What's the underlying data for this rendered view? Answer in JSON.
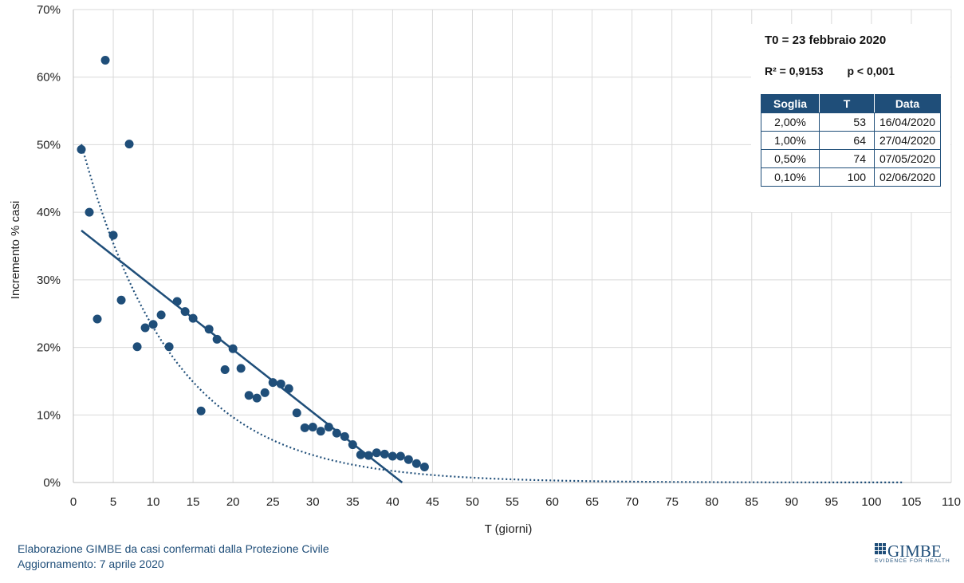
{
  "chart_data": {
    "type": "scatter",
    "xlabel": "T (giorni)",
    "ylabel": "Incremento % casi",
    "xlim": [
      0,
      110
    ],
    "ylim": [
      0,
      70
    ],
    "xticks": [
      "0",
      "5",
      "10",
      "15",
      "20",
      "25",
      "30",
      "35",
      "40",
      "45",
      "50",
      "55",
      "60",
      "65",
      "70",
      "75",
      "80",
      "85",
      "90",
      "95",
      "100",
      "105",
      "110"
    ],
    "yticks": [
      "0%",
      "10%",
      "20%",
      "30%",
      "40%",
      "50%",
      "60%",
      "70%"
    ],
    "grid": true,
    "points": {
      "x": [
        1,
        2,
        3,
        4,
        5,
        6,
        7,
        8,
        9,
        10,
        11,
        12,
        13,
        14,
        15,
        16,
        17,
        18,
        19,
        20,
        21,
        22,
        23,
        24,
        25,
        26,
        27,
        28,
        29,
        30,
        31,
        32,
        33,
        34,
        35,
        36,
        37,
        38,
        39,
        40,
        41,
        42,
        43,
        44
      ],
      "y": [
        49.3,
        40.0,
        24.2,
        62.5,
        36.6,
        27.0,
        50.1,
        20.1,
        22.9,
        23.4,
        24.8,
        20.1,
        26.8,
        25.3,
        24.3,
        10.6,
        22.7,
        21.2,
        16.7,
        19.8,
        16.9,
        12.9,
        12.5,
        13.3,
        14.8,
        14.6,
        13.9,
        10.3,
        8.1,
        8.2,
        7.6,
        8.2,
        7.3,
        6.8,
        5.6,
        4.1,
        4.0,
        4.4,
        4.2,
        3.9,
        3.9,
        3.4,
        2.8,
        2.3
      ]
    },
    "linear_fit": {
      "x": [
        1,
        41.2
      ],
      "y": [
        37.3,
        0
      ]
    },
    "exponential_fit": {
      "a": 54.6,
      "b": 0.0866,
      "x_range": [
        1,
        104
      ]
    },
    "colors": {
      "points": "#1f4e79",
      "lines": "#1f4e79",
      "grid": "#d9d9d9"
    },
    "annotations": {
      "t0": "T0 = 23 febbraio 2020",
      "r2": "R² = 0,9153",
      "p": "p < 0,001"
    },
    "thresholds_table": {
      "headers": [
        "Soglia",
        "T",
        "Data"
      ],
      "rows": [
        [
          "2,00%",
          "53",
          "16/04/2020"
        ],
        [
          "1,00%",
          "64",
          "27/04/2020"
        ],
        [
          "0,50%",
          "74",
          "07/05/2020"
        ],
        [
          "0,10%",
          "100",
          "02/06/2020"
        ]
      ]
    }
  },
  "footer": {
    "line1": "Elaborazione GIMBE da casi confermati dalla Protezione Civile",
    "line2": "Aggiornamento: 7 aprile 2020"
  },
  "logo": {
    "word": "GIMBE",
    "tagline": "EVIDENCE FOR HEALTH",
    "icon": "grid-logo-icon"
  }
}
